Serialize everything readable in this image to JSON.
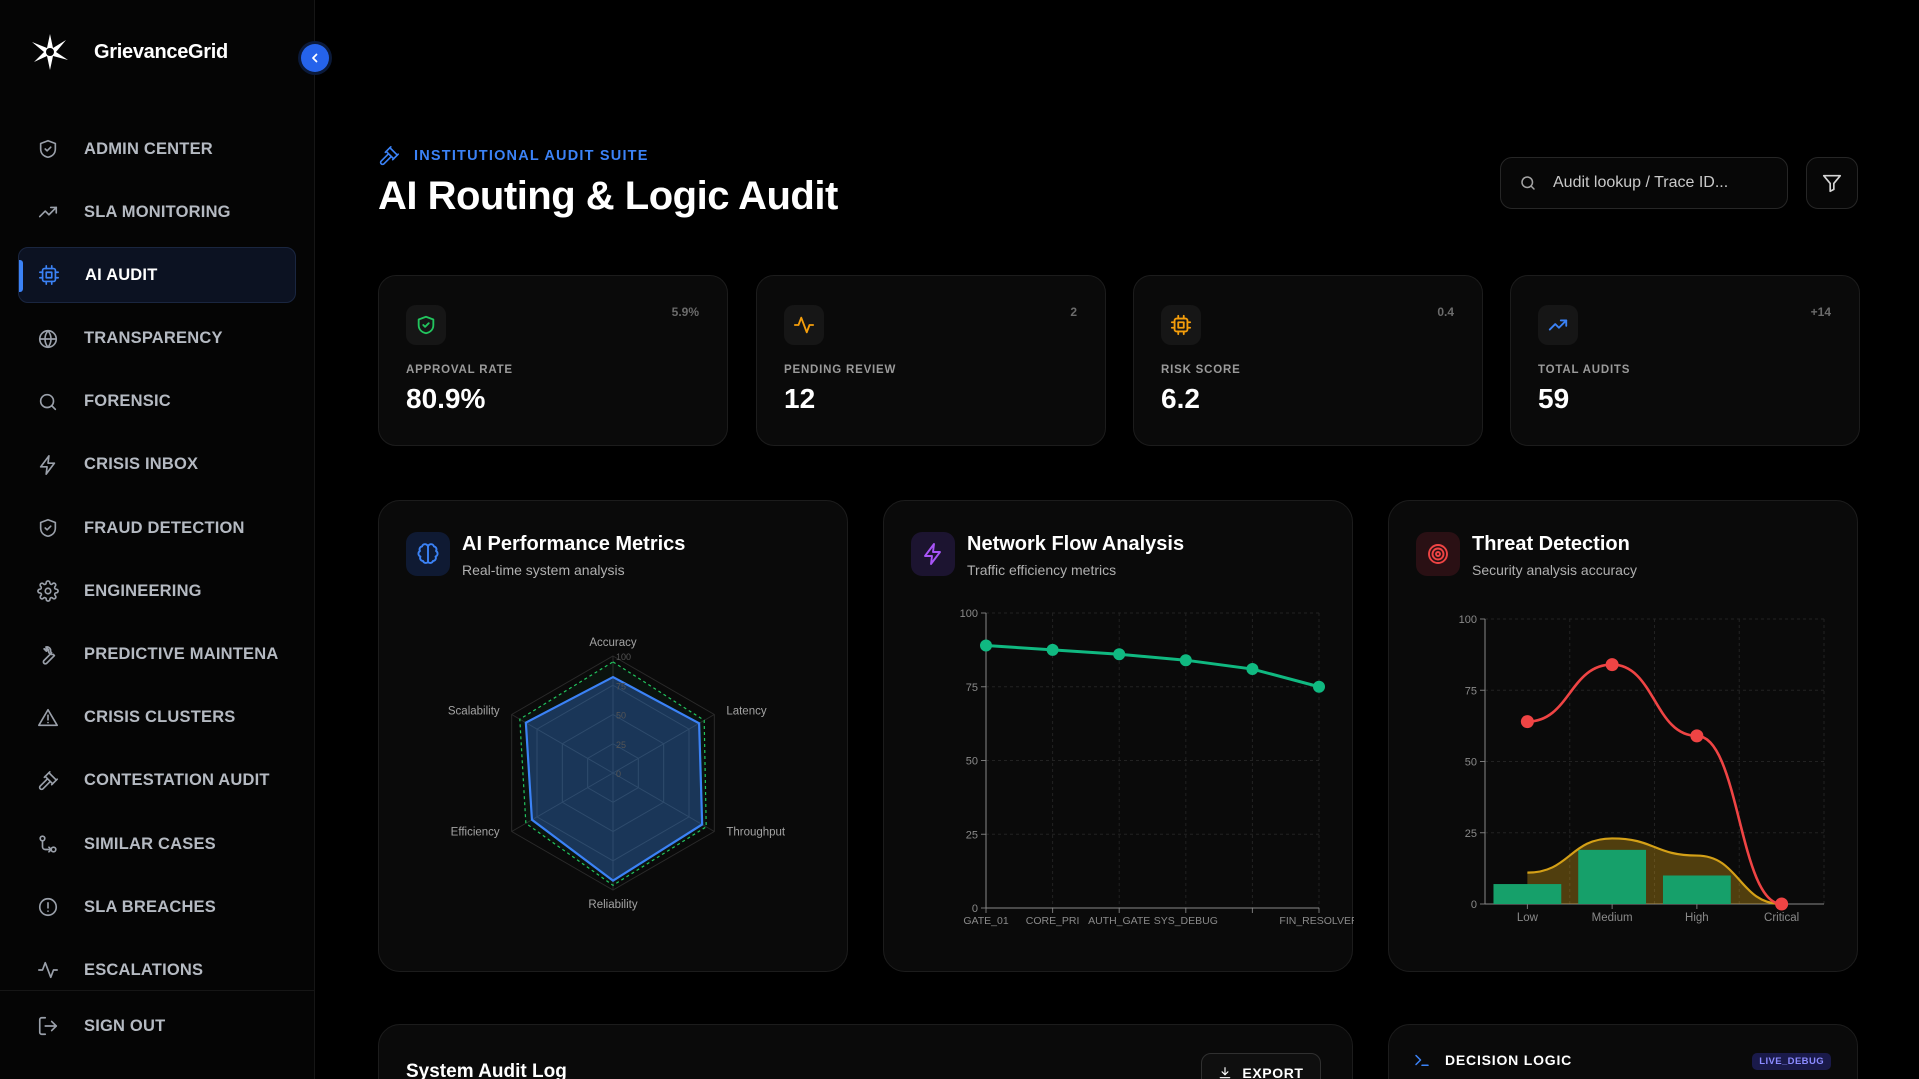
{
  "app": {
    "name": "GrievanceGrid"
  },
  "sidebar": {
    "items": [
      {
        "label": "ADMIN CENTER",
        "icon": "shield-icon",
        "active": false
      },
      {
        "label": "SLA MONITORING",
        "icon": "trending-up-icon",
        "active": false
      },
      {
        "label": "AI AUDIT",
        "icon": "cpu-icon",
        "active": true
      },
      {
        "label": "TRANSPARENCY",
        "icon": "globe-icon",
        "active": false
      },
      {
        "label": "FORENSIC",
        "icon": "search-icon",
        "active": false
      },
      {
        "label": "CRISIS INBOX",
        "icon": "zap-icon",
        "active": false
      },
      {
        "label": "FRAUD DETECTION",
        "icon": "shield-icon",
        "active": false
      },
      {
        "label": "ENGINEERING",
        "icon": "gear-icon",
        "active": false
      },
      {
        "label": "PREDICTIVE MAINTENA",
        "icon": "wrench-icon",
        "active": false
      },
      {
        "label": "CRISIS CLUSTERS",
        "icon": "alert-triangle-icon",
        "active": false
      },
      {
        "label": "CONTESTATION AUDIT",
        "icon": "gavel-icon",
        "active": false
      },
      {
        "label": "SIMILAR CASES",
        "icon": "git-compare-icon",
        "active": false
      },
      {
        "label": "SLA BREACHES",
        "icon": "alert-circle-icon",
        "active": false
      },
      {
        "label": "ESCALATIONS",
        "icon": "activity-icon",
        "active": false
      }
    ],
    "signout_label": "SIGN OUT"
  },
  "header": {
    "eyebrow": "INSTITUTIONAL AUDIT SUITE",
    "title": "AI Routing & Logic Audit",
    "search_placeholder": "Audit lookup / Trace ID..."
  },
  "stats": [
    {
      "label": "APPROVAL RATE",
      "value": "80.9%",
      "delta": "5.9%",
      "icon": "shield-check-icon",
      "color": "#22c55e"
    },
    {
      "label": "PENDING REVIEW",
      "value": "12",
      "delta": "2",
      "icon": "activity-icon",
      "color": "#f59e0b"
    },
    {
      "label": "RISK SCORE",
      "value": "6.2",
      "delta": "0.4",
      "icon": "cpu-icon",
      "color": "#f59e0b"
    },
    {
      "label": "TOTAL AUDITS",
      "value": "59",
      "delta": "+14",
      "icon": "trending-up-icon",
      "color": "#3b82f6"
    }
  ],
  "panels": {
    "performance": {
      "title": "AI Performance Metrics",
      "subtitle": "Real-time system analysis"
    },
    "network": {
      "title": "Network Flow Analysis",
      "subtitle": "Traffic efficiency metrics"
    },
    "threat": {
      "title": "Threat Detection",
      "subtitle": "Security analysis accuracy"
    }
  },
  "chart_data": [
    {
      "type": "radar",
      "axes": [
        "Accuracy",
        "Latency",
        "Throughput",
        "Reliability",
        "Efficiency",
        "Scalability"
      ],
      "radial_ticks": [
        "0",
        "25",
        "50",
        "75",
        "100"
      ],
      "range": [
        0,
        100
      ],
      "series": [
        {
          "values": [
            82,
            85,
            88,
            92,
            80,
            86
          ],
          "color": "#3b82f6"
        },
        {
          "values": [
            95,
            90,
            92,
            96,
            86,
            92
          ],
          "color": "#22c55e"
        }
      ]
    },
    {
      "type": "line",
      "categories": [
        "GATE_01",
        "CORE_PRI",
        "AUTH_GATE",
        "SYS_DEBUG",
        "",
        "FIN_RESOLVER"
      ],
      "values": [
        89,
        87.5,
        86,
        84,
        81,
        75
      ],
      "ylim": [
        0,
        100
      ],
      "yticks": [
        "0",
        "25",
        "50",
        "75",
        "100"
      ],
      "color": "#10b981"
    },
    {
      "type": "bar",
      "categories": [
        "Low",
        "Medium",
        "High",
        "Critical"
      ],
      "series": [
        {
          "type": "bar",
          "values": [
            7,
            19,
            10,
            0
          ],
          "color": "#16a06a"
        },
        {
          "type": "area",
          "values": [
            11,
            23,
            17,
            0
          ],
          "color": "#d4a017"
        },
        {
          "type": "line",
          "values": [
            64,
            84,
            59,
            0
          ],
          "color": "#ef4444"
        }
      ],
      "ylim": [
        0,
        100
      ],
      "yticks": [
        "0",
        "25",
        "50",
        "75",
        "100"
      ]
    }
  ],
  "bottom": {
    "log_title": "System Audit Log",
    "export_label": "EXPORT",
    "decision_title": "DECISION LOGIC",
    "decision_badge": "LIVE_DEBUG"
  }
}
